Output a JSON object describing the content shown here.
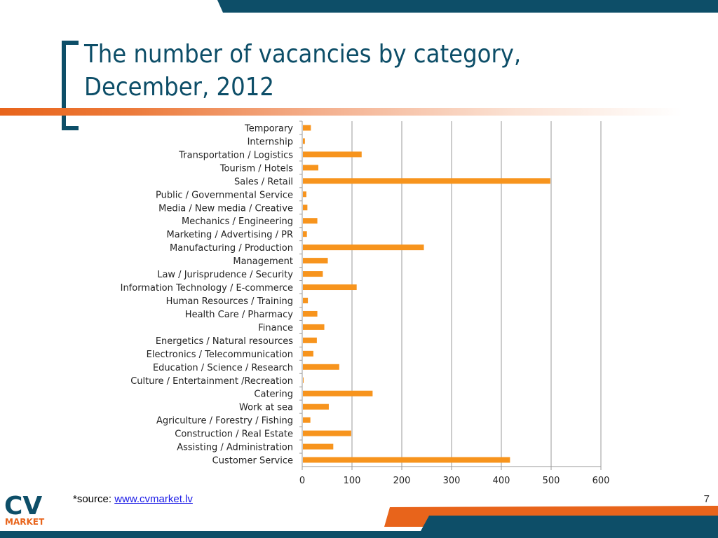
{
  "slide": {
    "title_line1": "The number of vacancies by category,",
    "title_line2": "December, 2012",
    "source_prefix": "*source: ",
    "source_link": "www.cvmarket.lv",
    "page_number": "7",
    "logo_top": "CV",
    "logo_bottom": "MARKET"
  },
  "colors": {
    "brand_blue": "#0d4e68",
    "brand_orange": "#e8641b",
    "bar": "#f7941d",
    "grid": "#9a9a9a"
  },
  "chart_data": {
    "type": "bar",
    "orientation": "horizontal",
    "categories": [
      "Temporary",
      "Internship",
      "Transportation / Logistics",
      "Tourism / Hotels",
      "Sales / Retail",
      "Public / Governmental Service",
      "Media / New media / Creative",
      "Mechanics / Engineering",
      "Marketing / Advertising / PR",
      "Manufacturing / Production",
      "Management",
      "Law / Jurisprudence / Security",
      "Information Technology / E-commerce",
      "Human Resources / Training",
      "Health Care / Pharmacy",
      "Finance",
      "Energetics / Natural resources",
      "Electronics / Telecommunication",
      "Education / Science / Research",
      "Culture / Entertainment /Recreation",
      "Catering",
      "Work at sea",
      "Agriculture / Forestry / Fishing",
      "Construction / Real Estate",
      "Assisting / Administration",
      "Customer Service"
    ],
    "values": [
      16,
      4,
      118,
      31,
      497,
      7,
      9,
      29,
      8,
      243,
      50,
      40,
      108,
      10,
      29,
      43,
      28,
      21,
      73,
      1,
      140,
      52,
      15,
      97,
      61,
      416
    ],
    "xlim": [
      0,
      600
    ],
    "xticks": [
      0,
      100,
      200,
      300,
      400,
      500,
      600
    ],
    "grid": "vertical",
    "legend": "none"
  }
}
